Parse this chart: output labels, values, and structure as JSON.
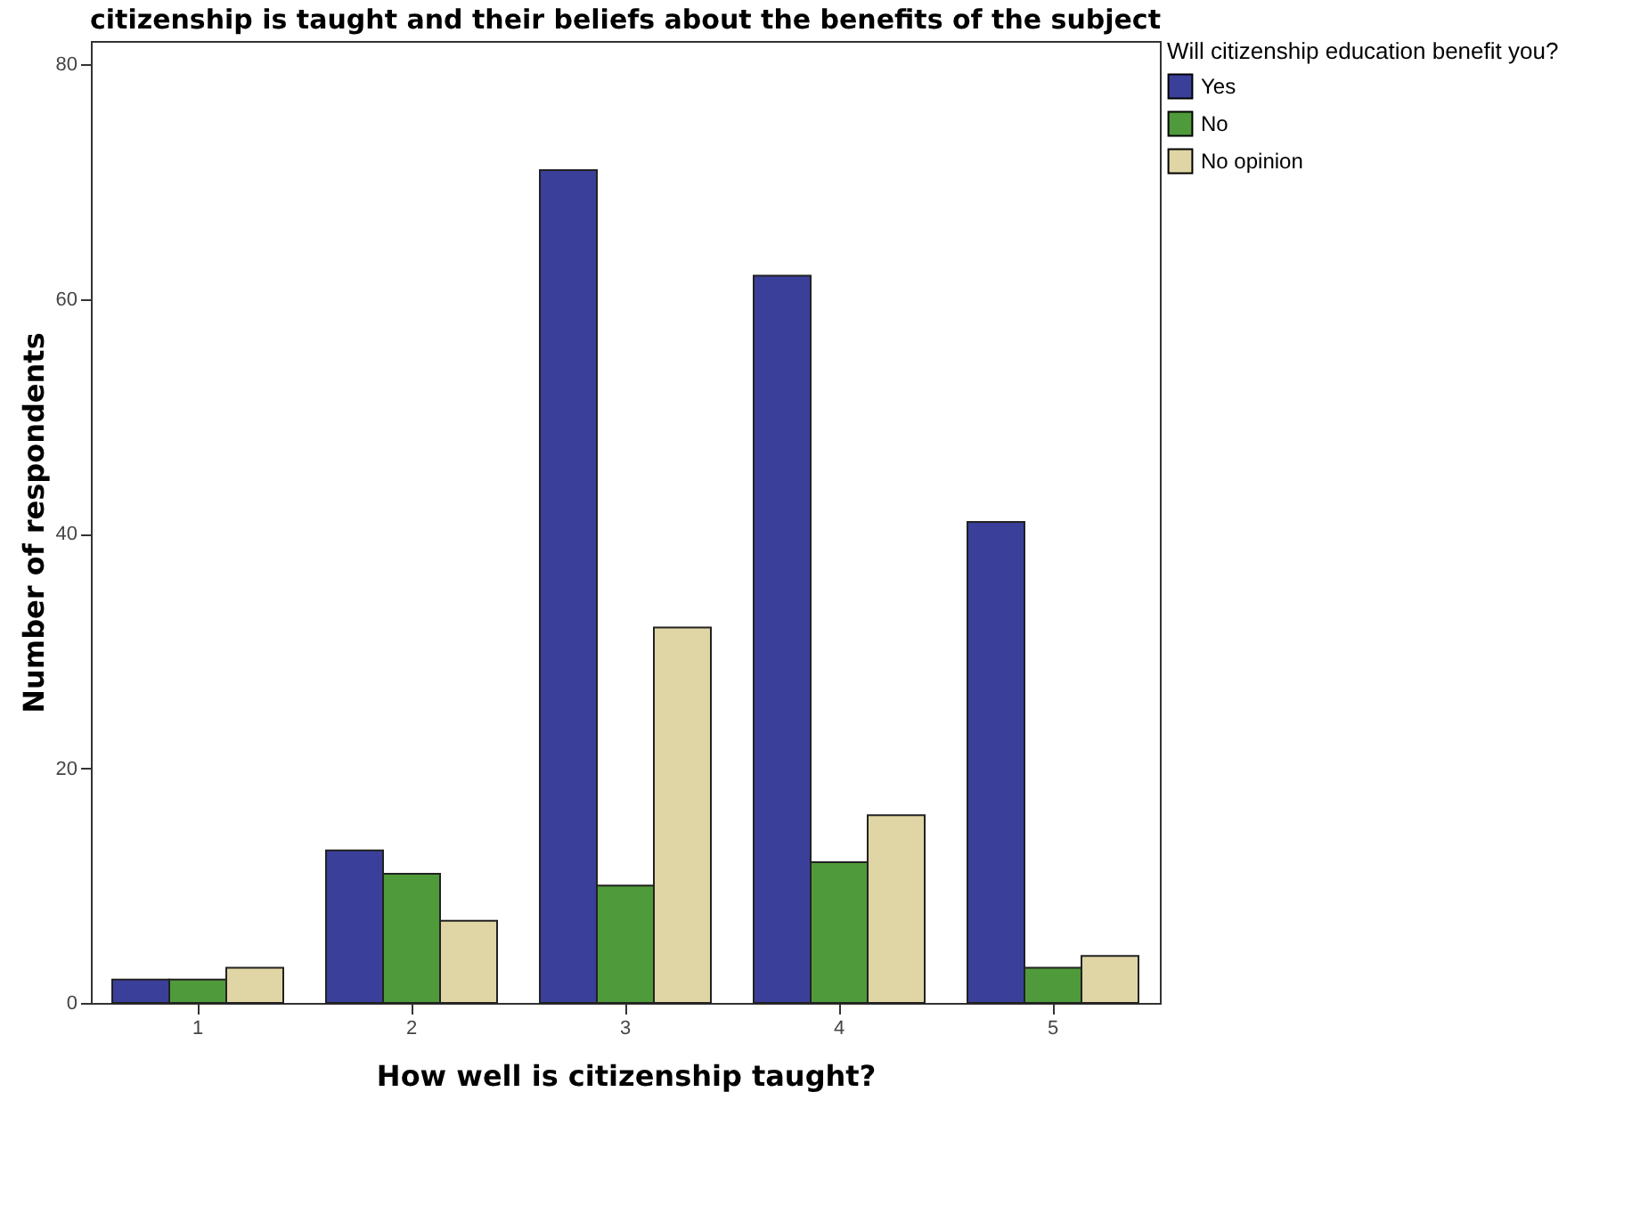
{
  "chart_data": {
    "type": "bar",
    "title": "citizenship is taught and their beliefs about the benefits of the subject",
    "xlabel": "How well is citizenship taught?",
    "ylabel": "Number of respondents",
    "legend_title": "Will citizenship education benefit you?",
    "categories": [
      "1",
      "2",
      "3",
      "4",
      "5"
    ],
    "series": [
      {
        "name": "Yes",
        "color": "#3a3f9a",
        "values": [
          2,
          13,
          71,
          62,
          41
        ]
      },
      {
        "name": "No",
        "color": "#4f9a3a",
        "values": [
          2,
          11,
          10,
          12,
          3
        ]
      },
      {
        "name": "No opinion",
        "color": "#e0d5a4",
        "values": [
          3,
          7,
          32,
          16,
          4
        ]
      }
    ],
    "ylim": [
      0,
      82
    ],
    "yticks": [
      0,
      20,
      40,
      60,
      80
    ],
    "grid": false,
    "legend": "top right"
  }
}
